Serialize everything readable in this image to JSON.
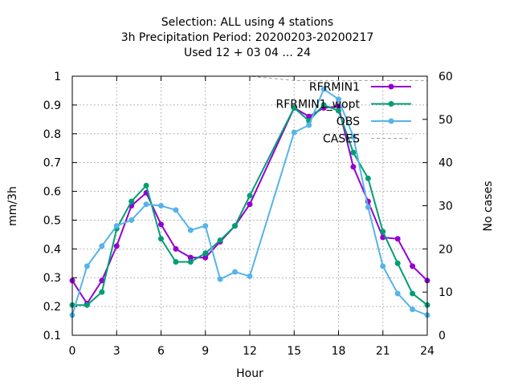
{
  "chart_data": {
    "type": "line",
    "title_lines": [
      "Selection: ALL using     4 stations",
      "3h Precipitation   Period: 20200203-20200217",
      "Used  12 + 03 04 ... 24"
    ],
    "xlabel": "Hour",
    "ylabel": "mm/3h",
    "y2label": "No cases",
    "xlim": [
      0,
      24
    ],
    "ylim": [
      0.1,
      1.0
    ],
    "y2lim": [
      0,
      60
    ],
    "xticks": [
      "0",
      "3",
      "6",
      "9",
      "12",
      "15",
      "18",
      "21",
      "24"
    ],
    "yticks": [
      "0.1",
      "0.2",
      "0.3",
      "0.4",
      "0.5",
      "0.6",
      "0.7",
      "0.8",
      "0.9",
      "1"
    ],
    "y2ticks": [
      "0",
      "10",
      "20",
      "30",
      "40",
      "50",
      "60"
    ],
    "grid": true,
    "legend_position": "top-right",
    "x": [
      0,
      1,
      2,
      3,
      4,
      5,
      6,
      7,
      8,
      9,
      10,
      11,
      12,
      15,
      16,
      17,
      18,
      19,
      20,
      21,
      22,
      23,
      24
    ],
    "series": [
      {
        "name": "RFRMIN1",
        "color": "#9400d3",
        "marker": "circle",
        "values": [
          0.29,
          0.21,
          0.29,
          0.41,
          0.55,
          0.595,
          0.485,
          0.4,
          0.37,
          0.37,
          0.425,
          0.48,
          0.555,
          0.89,
          0.86,
          0.89,
          0.895,
          0.685,
          0.565,
          0.44,
          0.435,
          0.34,
          0.29
        ]
      },
      {
        "name": "RFRMIN1_wopt",
        "color": "#009e73",
        "marker": "circle",
        "values": [
          0.205,
          0.205,
          0.25,
          0.47,
          0.565,
          0.62,
          0.435,
          0.355,
          0.355,
          0.385,
          0.43,
          0.48,
          0.585,
          0.89,
          0.845,
          0.9,
          0.88,
          0.735,
          0.645,
          0.46,
          0.35,
          0.245,
          0.205
        ]
      },
      {
        "name": "OBS",
        "color": "#56b4e9",
        "marker": "circle",
        "values": [
          0.17,
          0.34,
          0.41,
          0.48,
          0.5,
          0.555,
          0.55,
          0.535,
          0.465,
          0.48,
          0.295,
          0.32,
          0.305,
          0.805,
          0.83,
          0.955,
          0.92,
          0.79,
          0.545,
          0.34,
          0.245,
          0.19,
          0.17
        ]
      },
      {
        "name": "CASES",
        "color": "#a0a0a0",
        "dashed": true,
        "axis": "y2",
        "x": [
          0,
          12,
          15,
          18,
          21,
          24
        ],
        "values": [
          60,
          60,
          59,
          59,
          59,
          59
        ]
      }
    ]
  }
}
